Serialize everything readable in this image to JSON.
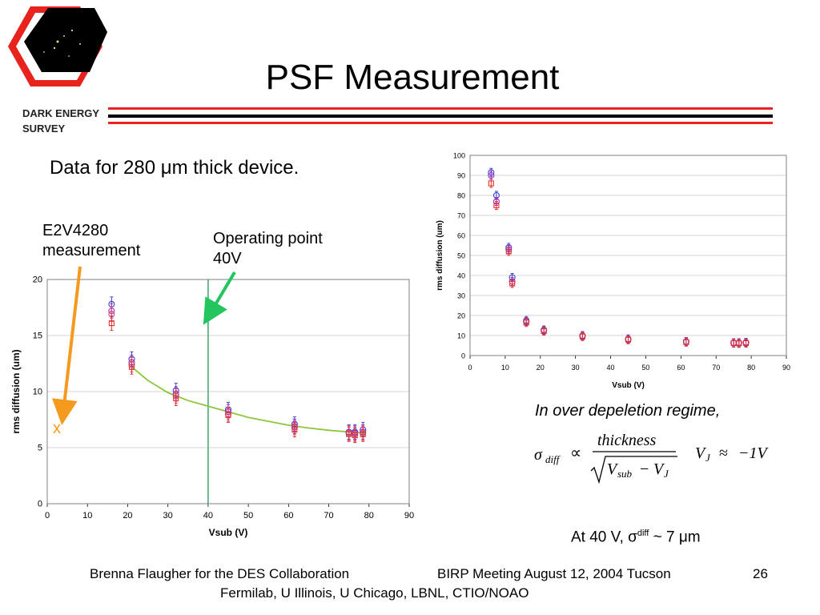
{
  "slide": {
    "title": "PSF Measurement",
    "subtitle": "Data for 280 μm thick device.",
    "logo_text_line1": "DARK ENERGY",
    "logo_text_line2": "SURVEY",
    "e2v_label_line1": "E2V4280",
    "e2v_label_line2": "measurement",
    "op_label_line1": "Operating point",
    "op_label_line2": "40V",
    "x_marker": "x",
    "formula_title": "In over  depeletion regime,",
    "result_prefix": "At 40 V, σ",
    "result_sup": "diff",
    "result_suffix": " ~ 7 μm",
    "footer_left": "Brenna Flaugher for the DES Collaboration",
    "footer_mid": "BIRP Meeting August 12, 2004 Tucson",
    "footer_num": "26",
    "footer_line2": "Fermilab, U Illinois, U Chicago, LBNL, CTIO/NOAO"
  },
  "formula": {
    "sigma": "σ",
    "sub": "diff",
    "prop": "∝",
    "numerator": "thickness",
    "v_sub": "V",
    "v_sub_sub": "sub",
    "minus": "−",
    "v_j": "V",
    "v_j_sub": "J",
    "approx_lhs_v": "V",
    "approx_lhs_sub": "J",
    "approx": "≈",
    "approx_rhs": "−1V"
  },
  "colors": {
    "red_rule": "#e8231e",
    "black_rule": "#000000",
    "arrow_orange": "#f59a1e",
    "arrow_green": "#22c55e",
    "fit_curve": "#8cc63f",
    "vline": "#3aa66a",
    "series_blue": "#3b48c8",
    "series_red": "#e03030",
    "series_purple": "#9b30c8",
    "series_pink": "#e0507a"
  },
  "chart_data": [
    {
      "type": "scatter",
      "name": "left",
      "xlabel": "Vsub (V)",
      "ylabel": "rms diffusion (um)",
      "xlim": [
        0,
        90
      ],
      "ylim": [
        0,
        20
      ],
      "xticks": [
        0,
        10,
        20,
        30,
        40,
        50,
        60,
        70,
        80,
        90
      ],
      "yticks": [
        0,
        5,
        10,
        15,
        20
      ],
      "grid": true,
      "vline_x": 40,
      "series": [
        {
          "color": "blue",
          "points": [
            [
              16,
              17.8
            ],
            [
              21,
              12.9
            ],
            [
              32,
              10.1
            ],
            [
              45,
              8.4
            ],
            [
              61.5,
              7.1
            ],
            [
              75,
              6.4
            ],
            [
              76.5,
              6.4
            ],
            [
              78.5,
              6.6
            ]
          ]
        },
        {
          "color": "purple",
          "points": [
            [
              16,
              17.2
            ],
            [
              21,
              12.6
            ],
            [
              32,
              9.8
            ],
            [
              45,
              8.2
            ],
            [
              61.5,
              6.9
            ],
            [
              75,
              6.3
            ],
            [
              76.5,
              6.3
            ],
            [
              78.5,
              6.4
            ]
          ]
        },
        {
          "color": "pink",
          "points": [
            [
              16,
              16.9
            ],
            [
              21,
              12.4
            ],
            [
              32,
              9.6
            ],
            [
              45,
              8.0
            ],
            [
              61.5,
              6.8
            ],
            [
              75,
              6.3
            ],
            [
              76.5,
              6.2
            ],
            [
              78.5,
              6.3
            ]
          ]
        },
        {
          "color": "red",
          "points": [
            [
              16,
              16.1
            ],
            [
              21,
              12.2
            ],
            [
              32,
              9.4
            ],
            [
              45,
              7.9
            ],
            [
              61.5,
              6.6
            ],
            [
              75,
              6.2
            ],
            [
              76.5,
              6.1
            ],
            [
              78.5,
              6.2
            ]
          ]
        }
      ],
      "fit": [
        [
          21,
          12.2
        ],
        [
          25,
          11.0
        ],
        [
          30,
          9.9
        ],
        [
          35,
          9.2
        ],
        [
          40,
          8.7
        ],
        [
          45,
          8.2
        ],
        [
          50,
          7.7
        ],
        [
          55,
          7.35
        ],
        [
          60,
          7.0
        ],
        [
          65,
          6.75
        ],
        [
          70,
          6.55
        ],
        [
          75,
          6.4
        ],
        [
          79,
          6.3
        ]
      ]
    },
    {
      "type": "scatter",
      "name": "right",
      "xlabel": "Vsub (V)",
      "ylabel": "rms diffusion (um)",
      "xlim": [
        0,
        90
      ],
      "ylim": [
        0,
        100
      ],
      "xticks": [
        0,
        10,
        20,
        30,
        40,
        50,
        60,
        70,
        80,
        90
      ],
      "yticks": [
        0,
        10,
        20,
        30,
        40,
        50,
        60,
        70,
        80,
        90,
        100
      ],
      "grid": true,
      "series": [
        {
          "color": "blue",
          "points": [
            [
              6,
              91.5
            ],
            [
              7.5,
              80
            ],
            [
              11,
              54
            ],
            [
              12,
              39
            ],
            [
              16,
              17.5
            ],
            [
              21,
              12.8
            ],
            [
              32,
              10
            ],
            [
              45,
              8.3
            ],
            [
              61.5,
              7
            ],
            [
              75,
              6.4
            ],
            [
              76.5,
              6.4
            ],
            [
              78.5,
              6.6
            ]
          ]
        },
        {
          "color": "purple",
          "points": [
            [
              6,
              90
            ],
            [
              7.5,
              77
            ],
            [
              11,
              53
            ],
            [
              12,
              37
            ],
            [
              16,
              17
            ],
            [
              21,
              12.5
            ],
            [
              32,
              9.8
            ],
            [
              45,
              8.1
            ],
            [
              61.5,
              6.9
            ],
            [
              75,
              6.3
            ],
            [
              76.5,
              6.3
            ],
            [
              78.5,
              6.4
            ]
          ]
        },
        {
          "color": "red",
          "points": [
            [
              6,
              86
            ],
            [
              7.5,
              75
            ],
            [
              11,
              52
            ],
            [
              12,
              36
            ],
            [
              16,
              16.5
            ],
            [
              21,
              12.2
            ],
            [
              32,
              9.5
            ],
            [
              45,
              7.9
            ],
            [
              61.5,
              6.7
            ],
            [
              75,
              6.2
            ],
            [
              76.5,
              6.1
            ],
            [
              78.5,
              6.2
            ]
          ]
        }
      ]
    }
  ]
}
